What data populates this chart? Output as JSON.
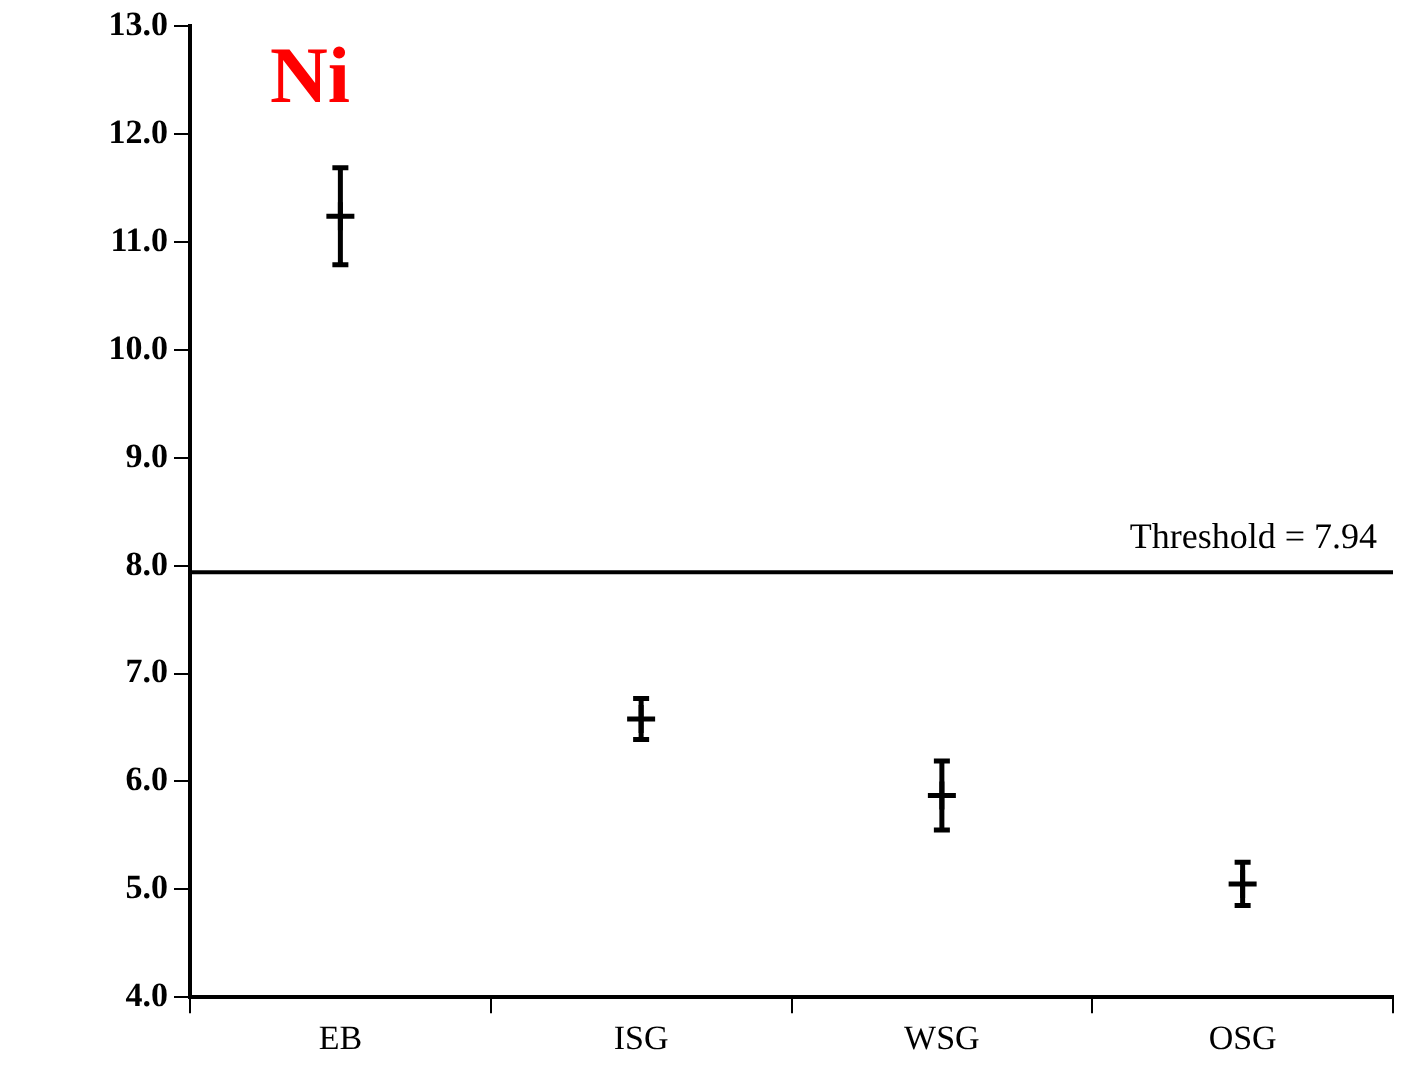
{
  "chart_data": {
    "type": "scatter",
    "title": "Ni",
    "categories": [
      "EB",
      "ISG",
      "WSG",
      "OSG"
    ],
    "series": [
      {
        "color": "#000000",
        "values": [
          11.24,
          6.58,
          5.87,
          5.05
        ],
        "errors": [
          0.45,
          0.19,
          0.32,
          0.2
        ]
      }
    ],
    "ylim": [
      4,
      13
    ],
    "yticks": [
      {
        "value": 4,
        "label": "4.0"
      },
      {
        "value": 5,
        "label": "5.0"
      },
      {
        "value": 6,
        "label": "6.0"
      },
      {
        "value": 7,
        "label": "7.0"
      },
      {
        "value": 8,
        "label": "8.0"
      },
      {
        "value": 9,
        "label": "9.0"
      },
      {
        "value": 10,
        "label": "10.0"
      },
      {
        "value": 11,
        "label": "11.0"
      },
      {
        "value": 12,
        "label": "12.0"
      },
      {
        "value": 13,
        "label": "13.0"
      }
    ],
    "ref_lines": [
      {
        "axis": "y",
        "value": 7.94,
        "label": "Threshold = 7.94",
        "color": "#000000"
      }
    ],
    "grid": false,
    "legend": false,
    "marker": "cross"
  }
}
